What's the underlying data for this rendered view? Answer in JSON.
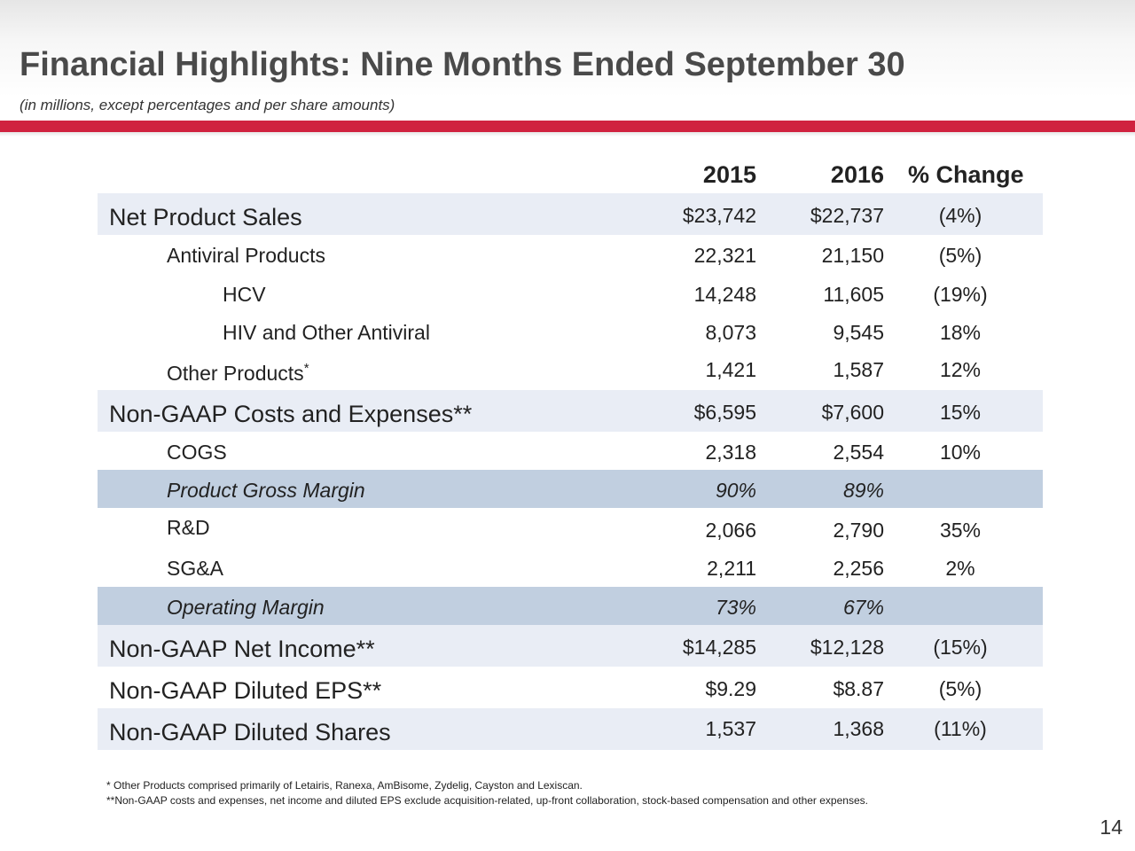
{
  "header": {
    "title": "Financial Highlights:  Nine Months Ended September 30",
    "subtitle": "(in millions, except percentages and per share amounts)"
  },
  "table": {
    "columns": [
      "2015",
      "2016",
      "% Change"
    ],
    "rows": [
      {
        "label": "Net Product Sales",
        "v2015": "$23,742",
        "v2016": "$22,737",
        "change": "(4%)"
      },
      {
        "label": "Antiviral Products",
        "v2015": "22,321",
        "v2016": "21,150",
        "change": "(5%)"
      },
      {
        "label": "HCV",
        "v2015": "14,248",
        "v2016": "11,605",
        "change": "(19%)"
      },
      {
        "label": "HIV and Other Antiviral",
        "v2015": "8,073",
        "v2016": "9,545",
        "change": "18%"
      },
      {
        "label": "Other Products",
        "label_mark": "*",
        "v2015": "1,421",
        "v2016": "1,587",
        "change": "12%"
      },
      {
        "label": "Non-GAAP Costs and Expenses**",
        "v2015": "$6,595",
        "v2016": "$7,600",
        "change": "15%"
      },
      {
        "label": "COGS",
        "v2015": "2,318",
        "v2016": "2,554",
        "change": "10%"
      },
      {
        "label": "Product Gross Margin",
        "v2015": "90%",
        "v2016": "89%",
        "change": ""
      },
      {
        "label": "R&D",
        "v2015": "2,066",
        "v2016": "2,790",
        "change": "35%"
      },
      {
        "label": "SG&A",
        "v2015": "2,211",
        "v2016": "2,256",
        "change": "2%"
      },
      {
        "label": "Operating Margin",
        "v2015": "73%",
        "v2016": "67%",
        "change": ""
      },
      {
        "label": "Non-GAAP Net Income**",
        "v2015": "$14,285",
        "v2016": "$12,128",
        "change": "(15%)"
      },
      {
        "label": "Non-GAAP Diluted EPS**",
        "v2015": "$9.29",
        "v2016": "$8.87",
        "change": "(5%)"
      },
      {
        "label": "Non-GAAP Diluted Shares",
        "v2015": "1,537",
        "v2016": "1,368",
        "change": "(11%)"
      }
    ]
  },
  "footnotes": [
    "* Other Products comprised primarily of Letairis, Ranexa, AmBisome, Zydelig, Cayston and Lexiscan.",
    "**Non-GAAP costs and expenses, net income and diluted EPS exclude acquisition-related, up-front collaboration, stock-based compensation and other expenses."
  ],
  "page_number": "14",
  "colors": {
    "accent_red": "#d0223f",
    "row_light": "#e9edf5",
    "row_mid": "#c1cfe0",
    "title_gray": "#4a4a4a"
  }
}
